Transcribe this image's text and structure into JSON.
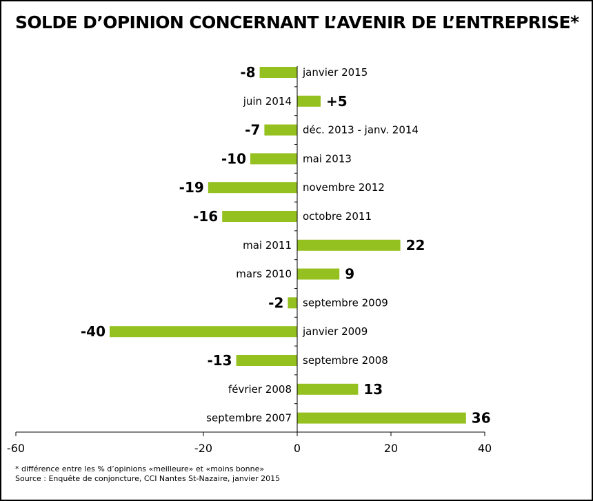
{
  "title": "SOLDE D’OPINION CONCERNANT L’AVENIR DE L’ENTREPRISE*",
  "footnote": "* différence entre les % d’opinions «meilleure» et «moins bonne»",
  "source": "Source : Enquête de conjoncture, CCI Nantes St-Nazaire, janvier 2015",
  "colors": {
    "bar": "#94c11f",
    "axis": "#000000"
  },
  "chart_data": {
    "type": "bar",
    "orientation": "horizontal",
    "title": "SOLDE D’OPINION CONCERNANT L’AVENIR DE L’ENTREPRISE*",
    "xlim": [
      -60,
      40
    ],
    "xticks": [
      -60,
      -20,
      0,
      20,
      40
    ],
    "grid": false,
    "categories": [
      "janvier 2015",
      "juin 2014",
      "déc. 2013 - janv. 2014",
      "mai 2013",
      "novembre 2012",
      "octobre 2011",
      "mai 2011",
      "mars 2010",
      "septembre 2009",
      "janvier 2009",
      "septembre 2008",
      "février 2008",
      "septembre 2007"
    ],
    "values": [
      -8,
      5,
      -7,
      -10,
      -19,
      -16,
      22,
      9,
      -2,
      -40,
      -13,
      13,
      36
    ],
    "value_labels": [
      "-8",
      "+5",
      "-7",
      "-10",
      "-19",
      "-16",
      "22",
      "9",
      "-2",
      "-40",
      "-13",
      "13",
      "36"
    ]
  }
}
